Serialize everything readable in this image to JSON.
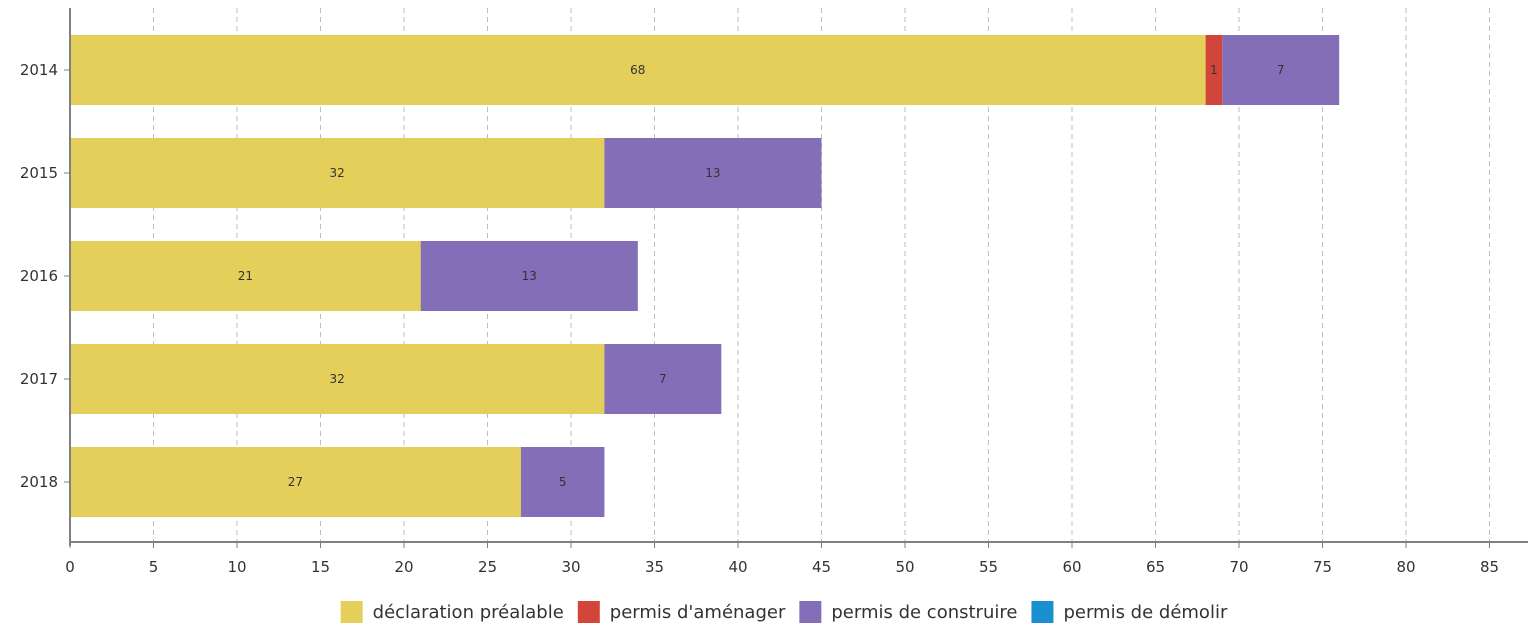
{
  "chart_data": {
    "type": "bar",
    "orientation": "horizontal",
    "stacked": true,
    "title": "",
    "xlabel": "",
    "ylabel": "",
    "categories": [
      "2014",
      "2015",
      "2016",
      "2017",
      "2018"
    ],
    "series": [
      {
        "name": "déclaration préalable",
        "color": "#E3CF5A",
        "values": [
          68,
          32,
          21,
          32,
          27
        ]
      },
      {
        "name": "permis d'aménager",
        "color": "#D2453A",
        "values": [
          1,
          0,
          0,
          0,
          0
        ]
      },
      {
        "name": "permis de construire",
        "color": "#836EB7",
        "values": [
          7,
          13,
          13,
          7,
          5
        ]
      },
      {
        "name": "permis de démolir",
        "color": "#1A8FD0",
        "values": [
          0,
          0,
          0,
          0,
          0
        ]
      }
    ],
    "xlim": [
      0,
      85
    ],
    "xticks": [
      "0",
      "5",
      "10",
      "15",
      "20",
      "25",
      "30",
      "35",
      "40",
      "45",
      "50",
      "55",
      "60",
      "65",
      "70",
      "75",
      "80",
      "85"
    ],
    "grid": "vertical dashed",
    "data_labels": true,
    "legend_position": "bottom"
  }
}
